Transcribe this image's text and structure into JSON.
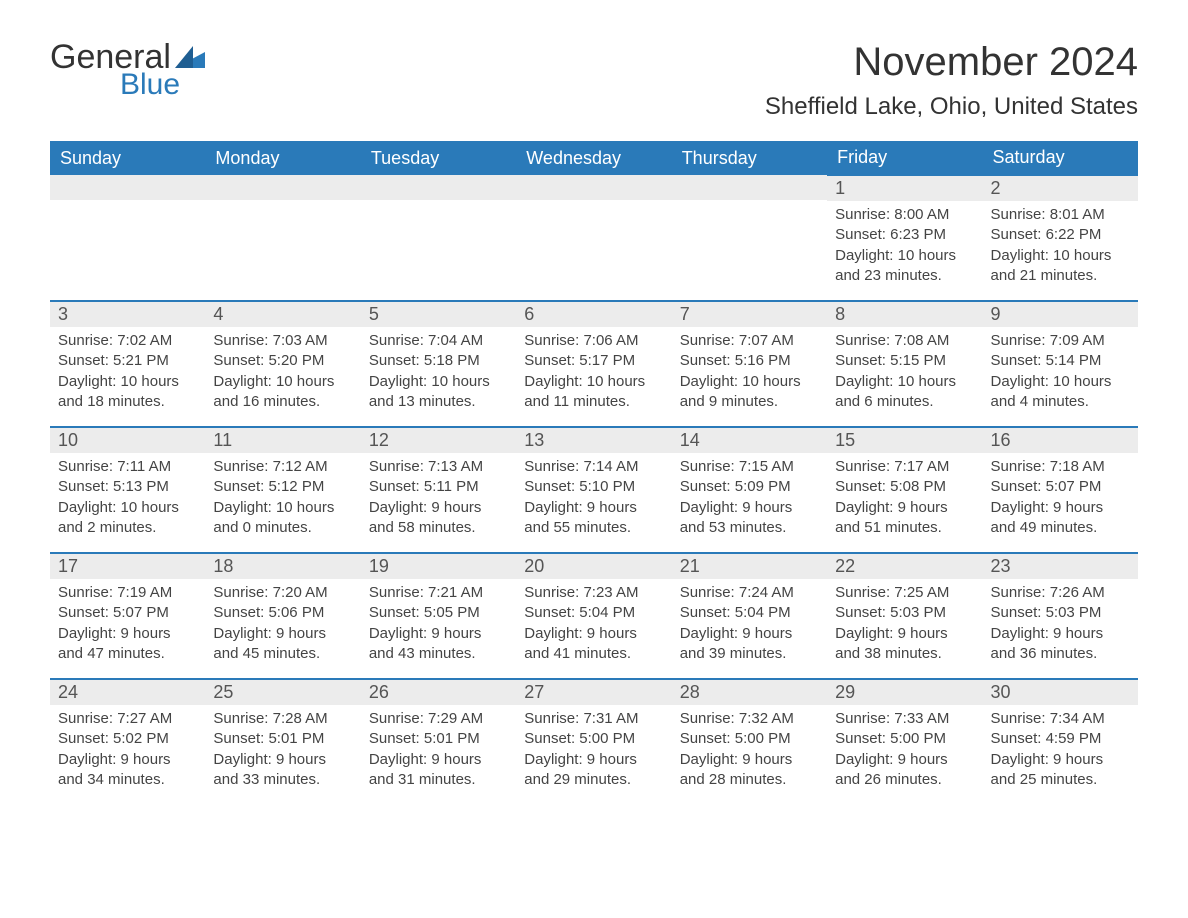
{
  "logo": {
    "general": "General",
    "blue": "Blue"
  },
  "title": "November 2024",
  "location": "Sheffield Lake, Ohio, United States",
  "colors": {
    "header_bg": "#2a7ab9",
    "header_text": "#ffffff",
    "day_border": "#2a7ab9",
    "daynum_bg": "#ececec",
    "text": "#333333"
  },
  "weekdays": [
    "Sunday",
    "Monday",
    "Tuesday",
    "Wednesday",
    "Thursday",
    "Friday",
    "Saturday"
  ],
  "weeks": [
    [
      null,
      null,
      null,
      null,
      null,
      {
        "n": "1",
        "sunrise": "Sunrise: 8:00 AM",
        "sunset": "Sunset: 6:23 PM",
        "daylight": "Daylight: 10 hours and 23 minutes."
      },
      {
        "n": "2",
        "sunrise": "Sunrise: 8:01 AM",
        "sunset": "Sunset: 6:22 PM",
        "daylight": "Daylight: 10 hours and 21 minutes."
      }
    ],
    [
      {
        "n": "3",
        "sunrise": "Sunrise: 7:02 AM",
        "sunset": "Sunset: 5:21 PM",
        "daylight": "Daylight: 10 hours and 18 minutes."
      },
      {
        "n": "4",
        "sunrise": "Sunrise: 7:03 AM",
        "sunset": "Sunset: 5:20 PM",
        "daylight": "Daylight: 10 hours and 16 minutes."
      },
      {
        "n": "5",
        "sunrise": "Sunrise: 7:04 AM",
        "sunset": "Sunset: 5:18 PM",
        "daylight": "Daylight: 10 hours and 13 minutes."
      },
      {
        "n": "6",
        "sunrise": "Sunrise: 7:06 AM",
        "sunset": "Sunset: 5:17 PM",
        "daylight": "Daylight: 10 hours and 11 minutes."
      },
      {
        "n": "7",
        "sunrise": "Sunrise: 7:07 AM",
        "sunset": "Sunset: 5:16 PM",
        "daylight": "Daylight: 10 hours and 9 minutes."
      },
      {
        "n": "8",
        "sunrise": "Sunrise: 7:08 AM",
        "sunset": "Sunset: 5:15 PM",
        "daylight": "Daylight: 10 hours and 6 minutes."
      },
      {
        "n": "9",
        "sunrise": "Sunrise: 7:09 AM",
        "sunset": "Sunset: 5:14 PM",
        "daylight": "Daylight: 10 hours and 4 minutes."
      }
    ],
    [
      {
        "n": "10",
        "sunrise": "Sunrise: 7:11 AM",
        "sunset": "Sunset: 5:13 PM",
        "daylight": "Daylight: 10 hours and 2 minutes."
      },
      {
        "n": "11",
        "sunrise": "Sunrise: 7:12 AM",
        "sunset": "Sunset: 5:12 PM",
        "daylight": "Daylight: 10 hours and 0 minutes."
      },
      {
        "n": "12",
        "sunrise": "Sunrise: 7:13 AM",
        "sunset": "Sunset: 5:11 PM",
        "daylight": "Daylight: 9 hours and 58 minutes."
      },
      {
        "n": "13",
        "sunrise": "Sunrise: 7:14 AM",
        "sunset": "Sunset: 5:10 PM",
        "daylight": "Daylight: 9 hours and 55 minutes."
      },
      {
        "n": "14",
        "sunrise": "Sunrise: 7:15 AM",
        "sunset": "Sunset: 5:09 PM",
        "daylight": "Daylight: 9 hours and 53 minutes."
      },
      {
        "n": "15",
        "sunrise": "Sunrise: 7:17 AM",
        "sunset": "Sunset: 5:08 PM",
        "daylight": "Daylight: 9 hours and 51 minutes."
      },
      {
        "n": "16",
        "sunrise": "Sunrise: 7:18 AM",
        "sunset": "Sunset: 5:07 PM",
        "daylight": "Daylight: 9 hours and 49 minutes."
      }
    ],
    [
      {
        "n": "17",
        "sunrise": "Sunrise: 7:19 AM",
        "sunset": "Sunset: 5:07 PM",
        "daylight": "Daylight: 9 hours and 47 minutes."
      },
      {
        "n": "18",
        "sunrise": "Sunrise: 7:20 AM",
        "sunset": "Sunset: 5:06 PM",
        "daylight": "Daylight: 9 hours and 45 minutes."
      },
      {
        "n": "19",
        "sunrise": "Sunrise: 7:21 AM",
        "sunset": "Sunset: 5:05 PM",
        "daylight": "Daylight: 9 hours and 43 minutes."
      },
      {
        "n": "20",
        "sunrise": "Sunrise: 7:23 AM",
        "sunset": "Sunset: 5:04 PM",
        "daylight": "Daylight: 9 hours and 41 minutes."
      },
      {
        "n": "21",
        "sunrise": "Sunrise: 7:24 AM",
        "sunset": "Sunset: 5:04 PM",
        "daylight": "Daylight: 9 hours and 39 minutes."
      },
      {
        "n": "22",
        "sunrise": "Sunrise: 7:25 AM",
        "sunset": "Sunset: 5:03 PM",
        "daylight": "Daylight: 9 hours and 38 minutes."
      },
      {
        "n": "23",
        "sunrise": "Sunrise: 7:26 AM",
        "sunset": "Sunset: 5:03 PM",
        "daylight": "Daylight: 9 hours and 36 minutes."
      }
    ],
    [
      {
        "n": "24",
        "sunrise": "Sunrise: 7:27 AM",
        "sunset": "Sunset: 5:02 PM",
        "daylight": "Daylight: 9 hours and 34 minutes."
      },
      {
        "n": "25",
        "sunrise": "Sunrise: 7:28 AM",
        "sunset": "Sunset: 5:01 PM",
        "daylight": "Daylight: 9 hours and 33 minutes."
      },
      {
        "n": "26",
        "sunrise": "Sunrise: 7:29 AM",
        "sunset": "Sunset: 5:01 PM",
        "daylight": "Daylight: 9 hours and 31 minutes."
      },
      {
        "n": "27",
        "sunrise": "Sunrise: 7:31 AM",
        "sunset": "Sunset: 5:00 PM",
        "daylight": "Daylight: 9 hours and 29 minutes."
      },
      {
        "n": "28",
        "sunrise": "Sunrise: 7:32 AM",
        "sunset": "Sunset: 5:00 PM",
        "daylight": "Daylight: 9 hours and 28 minutes."
      },
      {
        "n": "29",
        "sunrise": "Sunrise: 7:33 AM",
        "sunset": "Sunset: 5:00 PM",
        "daylight": "Daylight: 9 hours and 26 minutes."
      },
      {
        "n": "30",
        "sunrise": "Sunrise: 7:34 AM",
        "sunset": "Sunset: 4:59 PM",
        "daylight": "Daylight: 9 hours and 25 minutes."
      }
    ]
  ]
}
